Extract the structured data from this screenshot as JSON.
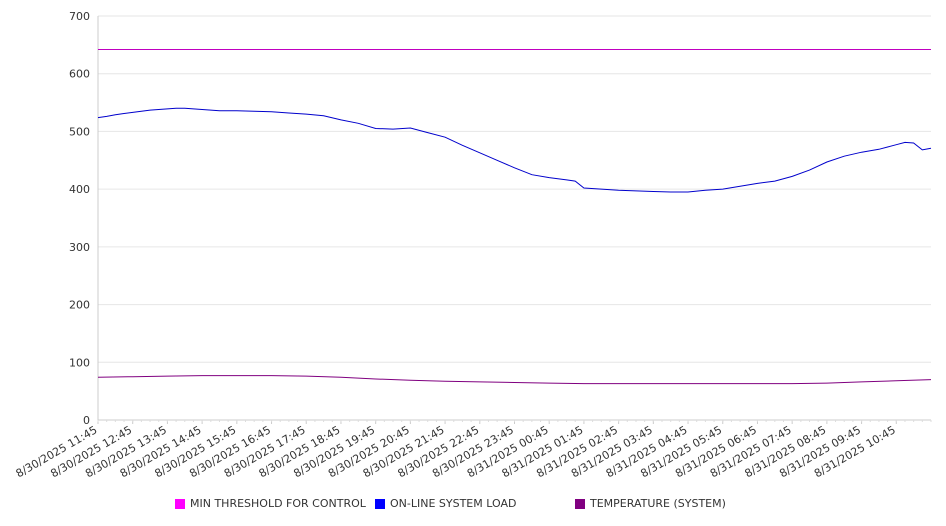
{
  "chart_data": {
    "type": "line",
    "ylim": [
      0,
      700
    ],
    "yticks": [
      0,
      100,
      200,
      300,
      400,
      500,
      600,
      700
    ],
    "xticks": [
      "8/30/2025 11:45",
      "8/30/2025 12:45",
      "8/30/2025 13:45",
      "8/30/2025 14:45",
      "8/30/2025 15:45",
      "8/30/2025 16:45",
      "8/30/2025 17:45",
      "8/30/2025 18:45",
      "8/30/2025 19:45",
      "8/30/2025 20:45",
      "8/30/2025 21:45",
      "8/30/2025 22:45",
      "8/30/2025 23:45",
      "8/31/2025 00:45",
      "8/31/2025 01:45",
      "8/31/2025 02:45",
      "8/31/2025 03:45",
      "8/31/2025 04:45",
      "8/31/2025 05:45",
      "8/31/2025 06:45",
      "8/31/2025 07:45",
      "8/31/2025 08:45",
      "8/31/2025 09:45",
      "8/31/2025 10:45"
    ],
    "x_end": "8/31/2025 11:45",
    "grid": true,
    "legend_position": "bottom",
    "series": [
      {
        "name": "MIN THRESHOLD FOR CONTROL",
        "color": "#c000c0",
        "x": [
          "8/30/2025 11:45",
          "8/31/2025 11:45"
        ],
        "values": [
          642,
          642
        ]
      },
      {
        "name": "ON-LINE SYSTEM LOAD",
        "color": "#0000cc",
        "x": [
          "8/30/2025 11:45",
          "8/30/2025 12:00",
          "8/30/2025 12:15",
          "8/30/2025 12:30",
          "8/30/2025 12:45",
          "8/30/2025 13:00",
          "8/30/2025 13:15",
          "8/30/2025 13:30",
          "8/30/2025 13:45",
          "8/30/2025 14:00",
          "8/30/2025 14:15",
          "8/30/2025 14:30",
          "8/30/2025 14:45",
          "8/30/2025 15:15",
          "8/30/2025 15:45",
          "8/30/2025 16:15",
          "8/30/2025 16:45",
          "8/30/2025 17:15",
          "8/30/2025 17:45",
          "8/30/2025 18:15",
          "8/30/2025 18:45",
          "8/30/2025 19:15",
          "8/30/2025 19:45",
          "8/30/2025 20:15",
          "8/30/2025 20:45",
          "8/30/2025 21:15",
          "8/30/2025 21:45",
          "8/30/2025 22:15",
          "8/30/2025 22:45",
          "8/30/2025 23:15",
          "8/30/2025 23:45",
          "8/31/2025 00:15",
          "8/31/2025 00:45",
          "8/31/2025 01:15",
          "8/31/2025 01:30",
          "8/31/2025 01:45",
          "8/31/2025 02:15",
          "8/31/2025 02:45",
          "8/31/2025 03:15",
          "8/31/2025 03:45",
          "8/31/2025 04:15",
          "8/31/2025 04:45",
          "8/31/2025 05:15",
          "8/31/2025 05:45",
          "8/31/2025 06:15",
          "8/31/2025 06:45",
          "8/31/2025 07:15",
          "8/31/2025 07:45",
          "8/31/2025 08:15",
          "8/31/2025 08:45",
          "8/31/2025 09:15",
          "8/31/2025 09:45",
          "8/31/2025 10:15",
          "8/31/2025 10:30",
          "8/31/2025 10:45",
          "8/31/2025 11:00",
          "8/31/2025 11:15",
          "8/31/2025 11:30",
          "8/31/2025 11:45"
        ],
        "values": [
          524,
          526,
          529,
          531,
          533,
          535,
          537,
          538,
          539,
          540,
          540,
          539,
          538,
          536,
          536,
          535,
          534,
          532,
          530,
          527,
          520,
          514,
          505,
          504,
          506,
          498,
          490,
          476,
          463,
          450,
          437,
          425,
          420,
          416,
          414,
          402,
          400,
          398,
          397,
          396,
          395,
          395,
          398,
          400,
          405,
          410,
          414,
          422,
          433,
          447,
          457,
          464,
          469,
          473,
          477,
          481,
          480,
          468,
          471
        ]
      },
      {
        "name": "TEMPERATURE (SYSTEM)",
        "color": "#800080",
        "x": [
          "8/30/2025 11:45",
          "8/30/2025 12:45",
          "8/30/2025 13:45",
          "8/30/2025 14:45",
          "8/30/2025 15:45",
          "8/30/2025 16:45",
          "8/30/2025 17:45",
          "8/30/2025 18:45",
          "8/30/2025 19:45",
          "8/30/2025 20:45",
          "8/30/2025 21:45",
          "8/30/2025 22:45",
          "8/30/2025 23:45",
          "8/31/2025 00:45",
          "8/31/2025 01:45",
          "8/31/2025 02:45",
          "8/31/2025 03:45",
          "8/31/2025 04:45",
          "8/31/2025 05:45",
          "8/31/2025 06:45",
          "8/31/2025 07:45",
          "8/31/2025 08:45",
          "8/31/2025 09:45",
          "8/31/2025 10:45",
          "8/31/2025 11:45"
        ],
        "values": [
          74,
          75,
          76,
          77,
          77,
          77,
          76,
          74,
          71,
          69,
          67,
          66,
          65,
          64,
          63,
          63,
          63,
          63,
          63,
          63,
          63,
          64,
          66,
          68,
          70
        ]
      }
    ]
  },
  "legend": {
    "colors": [
      "#ff00ff",
      "#0000ff",
      "#800080"
    ]
  }
}
